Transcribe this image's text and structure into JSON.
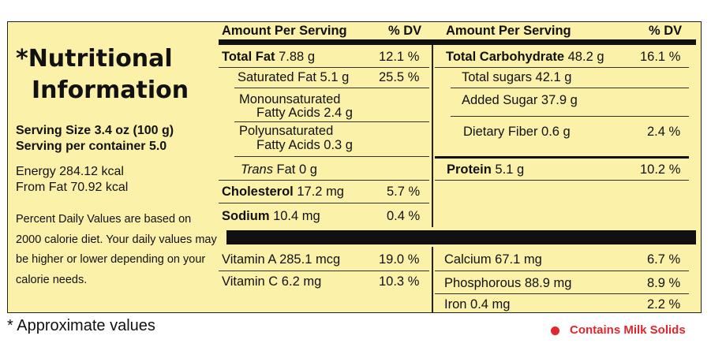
{
  "colors": {
    "panel_bg": "#fbf1a9",
    "rule": "#111111",
    "accent": "#e3262c"
  },
  "left": {
    "title_line1": "*Nutritional",
    "title_line2": "Information",
    "serving_size": "Serving Size 3.4 oz (100 g)",
    "servings_per_container": "Serving per container 5.0",
    "energy": "Energy  284.12 kcal",
    "from_fat": "From Fat 70.92 kcal",
    "dv_note": "Percent Daily Values are based on 2000 calorie diet. Your daily values may be higher or lower depending on your calorie needs."
  },
  "headers": {
    "amount_1": "Amount Per Serving",
    "dv_1": "% DV",
    "amount_2": "Amount Per Serving",
    "dv_2": "% DV"
  },
  "col1": {
    "total_fat_label": "Total Fat",
    "total_fat_value": " 7.88 g",
    "total_fat_dv": "12.1 %",
    "sat_fat": "Saturated Fat 5.1 g",
    "sat_fat_dv": "25.5 %",
    "mono_1": "Monounsaturated",
    "mono_2": "Fatty Acids 2.4 g",
    "poly_1": "Polyunsaturated",
    "poly_2": "Fatty Acids 0.3 g",
    "trans_label": "Trans",
    "trans_value": " Fat 0 g",
    "chol_label": "Cholesterol",
    "chol_value": " 17.2  mg",
    "chol_dv": "5.7 %",
    "sodium_label": "Sodium",
    "sodium_value": " 10.4 mg",
    "sodium_dv": "0.4 %"
  },
  "col2": {
    "carb_label": "Total Carbohydrate",
    "carb_value": " 48.2 g",
    "carb_dv": "16.1 %",
    "sugars": "Total sugars 42.1 g",
    "added_sugar": "Added Sugar 37.9 g",
    "fiber": "Dietary Fiber 0.6 g",
    "fiber_dv": "2.4 %",
    "protein_label": "Protein",
    "protein_value": " 5.1 g",
    "protein_dv": "10.2 %"
  },
  "vitamins": {
    "vit_a": "Vitamin A 285.1 mcg",
    "vit_a_dv": "19.0 %",
    "vit_c": "Vitamin C 6.2 mg",
    "vit_c_dv": "10.3 %",
    "calcium": "Calcium 67.1 mg",
    "calcium_dv": "6.7 %",
    "phosphorous": "Phosphorous 88.9 mg",
    "phosphorous_dv": "8.9 %",
    "iron": "Iron 0.4 mg",
    "iron_dv": "2.2 %"
  },
  "footer": {
    "approx": "* Approximate values",
    "milk": "Contains Milk Solids"
  }
}
